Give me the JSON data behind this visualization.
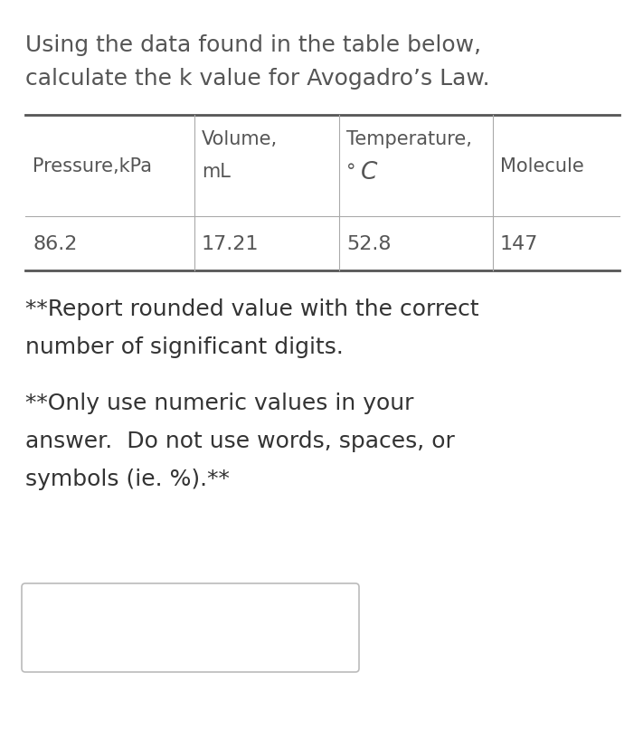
{
  "title_line1": "Using the data found in the table below,",
  "title_line2": "calculate the k value for Avogadro’s Law.",
  "col0_header_line1": "Pressure,kPa",
  "col1_header_line1": "Volume,",
  "col1_header_line2": "mL",
  "col2_header_line1": "Temperature,",
  "col2_header_line2_deg": "°",
  "col2_header_line2_C": "C",
  "col3_header": "Molecule",
  "data_col0": "86.2",
  "data_col1": "17.21",
  "data_col2": "52.8",
  "data_col3": "147",
  "note1_line1": "**Report rounded value with the correct",
  "note1_line2": "number of significant digits.",
  "note2_line1": "**Only use numeric values in your",
  "note2_line2": "answer.  Do not use words, spaces, or",
  "note2_line3": "symbols (ie. %).**",
  "bg_color": "#ffffff",
  "text_color": "#555555",
  "note_color": "#333333",
  "table_outer_line_color": "#555555",
  "table_inner_line_color": "#aaaaaa",
  "answer_box_edge_color": "#bbbbbb",
  "title_fontsize": 18,
  "note_fontsize": 18,
  "table_header_fontsize": 15,
  "table_data_fontsize": 16,
  "table_outer_linewidth": 2.0,
  "table_inner_linewidth": 0.8
}
